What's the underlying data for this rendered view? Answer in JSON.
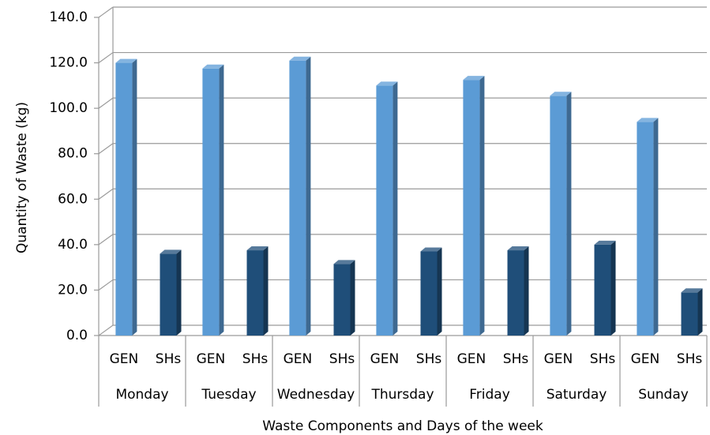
{
  "chart_data": {
    "type": "bar3d",
    "x_label": "Waste Components and Days of the week",
    "y_label": "Quantity of Waste (kg)",
    "categories": [
      "Monday",
      "Tuesday",
      "Wednesday",
      "Thursday",
      "Friday",
      "Saturday",
      "Sunday"
    ],
    "series": [
      {
        "name": "GEN",
        "color": "#5b9bd5",
        "values": [
          120,
          117.5,
          121,
          110,
          112.5,
          105.5,
          94
        ]
      },
      {
        "name": "SHs",
        "color": "#1f4e79",
        "values": [
          36,
          37.5,
          31.5,
          37,
          37.5,
          40,
          19
        ]
      }
    ],
    "ylim": [
      0,
      140
    ],
    "yticks": [
      {
        "value": 0,
        "label": "0.0"
      },
      {
        "value": 20,
        "label": "20.0"
      },
      {
        "value": 40,
        "label": "40.0"
      },
      {
        "value": 60,
        "label": "60.0"
      },
      {
        "value": 80,
        "label": "80.0"
      },
      {
        "value": 100,
        "label": "100.0"
      },
      {
        "value": 120,
        "label": "120.0"
      },
      {
        "value": 140,
        "label": "140.0"
      }
    ],
    "grid": true
  }
}
